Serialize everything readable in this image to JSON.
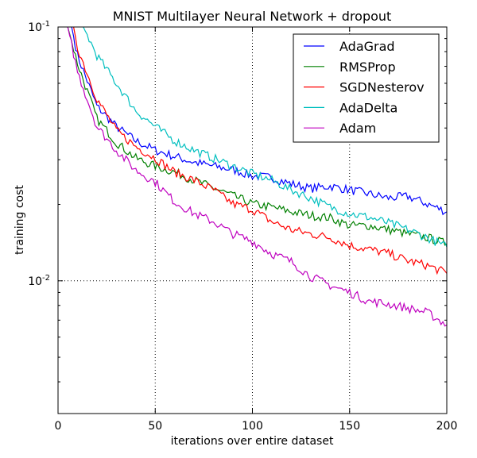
{
  "chart_data": {
    "type": "line",
    "title": "MNIST Multilayer Neural Network + dropout",
    "xlabel": "iterations over entire dataset",
    "ylabel": "training cost",
    "xlim": [
      0,
      200
    ],
    "ylim": [
      0.003,
      0.1
    ],
    "yscale": "log",
    "x_ticks": [
      "0",
      "50",
      "100",
      "150",
      "200"
    ],
    "x_tick_values": [
      0,
      50,
      100,
      150,
      200
    ],
    "y_ticks": [
      {
        "base": "10",
        "exp": "-1",
        "value": 0.1
      },
      {
        "base": "10",
        "exp": "-2",
        "value": 0.01
      }
    ],
    "grid": "dotted at x=50,100,150 and y=0.01",
    "legend_position": "top-right",
    "series": [
      {
        "name": "AdaGrad",
        "color": "#0000ff",
        "x": [
          7,
          10,
          20,
          30,
          40,
          50,
          60,
          70,
          80,
          90,
          100,
          110,
          120,
          130,
          140,
          150,
          160,
          170,
          180,
          190,
          200
        ],
        "y": [
          0.1,
          0.0773,
          0.0487,
          0.0405,
          0.0356,
          0.0327,
          0.0309,
          0.0293,
          0.0283,
          0.0274,
          0.0259,
          0.0255,
          0.0241,
          0.0231,
          0.0236,
          0.0228,
          0.022,
          0.0212,
          0.0215,
          0.0201,
          0.0187
        ]
      },
      {
        "name": "RMSProp",
        "color": "#008000",
        "x": [
          5,
          10,
          20,
          30,
          40,
          50,
          60,
          70,
          80,
          90,
          100,
          110,
          120,
          130,
          140,
          150,
          160,
          170,
          180,
          190,
          200
        ],
        "y": [
          0.1,
          0.0719,
          0.0435,
          0.0351,
          0.0304,
          0.0283,
          0.0268,
          0.0249,
          0.0232,
          0.0216,
          0.0201,
          0.0195,
          0.0187,
          0.0181,
          0.0177,
          0.0165,
          0.0165,
          0.0159,
          0.0153,
          0.0148,
          0.014
        ]
      },
      {
        "name": "SGDNesterov",
        "color": "#ff0000",
        "x": [
          8,
          10,
          20,
          30,
          40,
          50,
          60,
          70,
          80,
          90,
          100,
          110,
          120,
          130,
          140,
          150,
          160,
          170,
          180,
          190,
          200
        ],
        "y": [
          0.1,
          0.083,
          0.0521,
          0.0391,
          0.0338,
          0.0304,
          0.0268,
          0.0249,
          0.0228,
          0.0201,
          0.0191,
          0.0171,
          0.0159,
          0.0153,
          0.0148,
          0.0138,
          0.0133,
          0.0128,
          0.012,
          0.0115,
          0.0107
        ]
      },
      {
        "name": "AdaDelta",
        "color": "#00bfbf",
        "x": [
          13,
          20,
          30,
          40,
          50,
          60,
          70,
          80,
          90,
          100,
          110,
          120,
          130,
          140,
          150,
          160,
          170,
          180,
          190,
          200
        ],
        "y": [
          0.1,
          0.0772,
          0.06,
          0.0468,
          0.0405,
          0.0356,
          0.0327,
          0.0304,
          0.0283,
          0.0264,
          0.0249,
          0.0228,
          0.0212,
          0.0195,
          0.0184,
          0.0178,
          0.0169,
          0.0159,
          0.0148,
          0.0136
        ]
      },
      {
        "name": "Adam",
        "color": "#bf00bf",
        "x": [
          5,
          10,
          20,
          30,
          40,
          50,
          60,
          70,
          80,
          90,
          100,
          110,
          120,
          130,
          140,
          150,
          160,
          170,
          180,
          190,
          200
        ],
        "y": [
          0.1,
          0.0669,
          0.0405,
          0.0327,
          0.0273,
          0.0245,
          0.0205,
          0.0184,
          0.0171,
          0.0153,
          0.0143,
          0.0128,
          0.0119,
          0.0104,
          0.0096,
          0.009,
          0.0083,
          0.0081,
          0.0078,
          0.0075,
          0.0067
        ]
      }
    ]
  }
}
